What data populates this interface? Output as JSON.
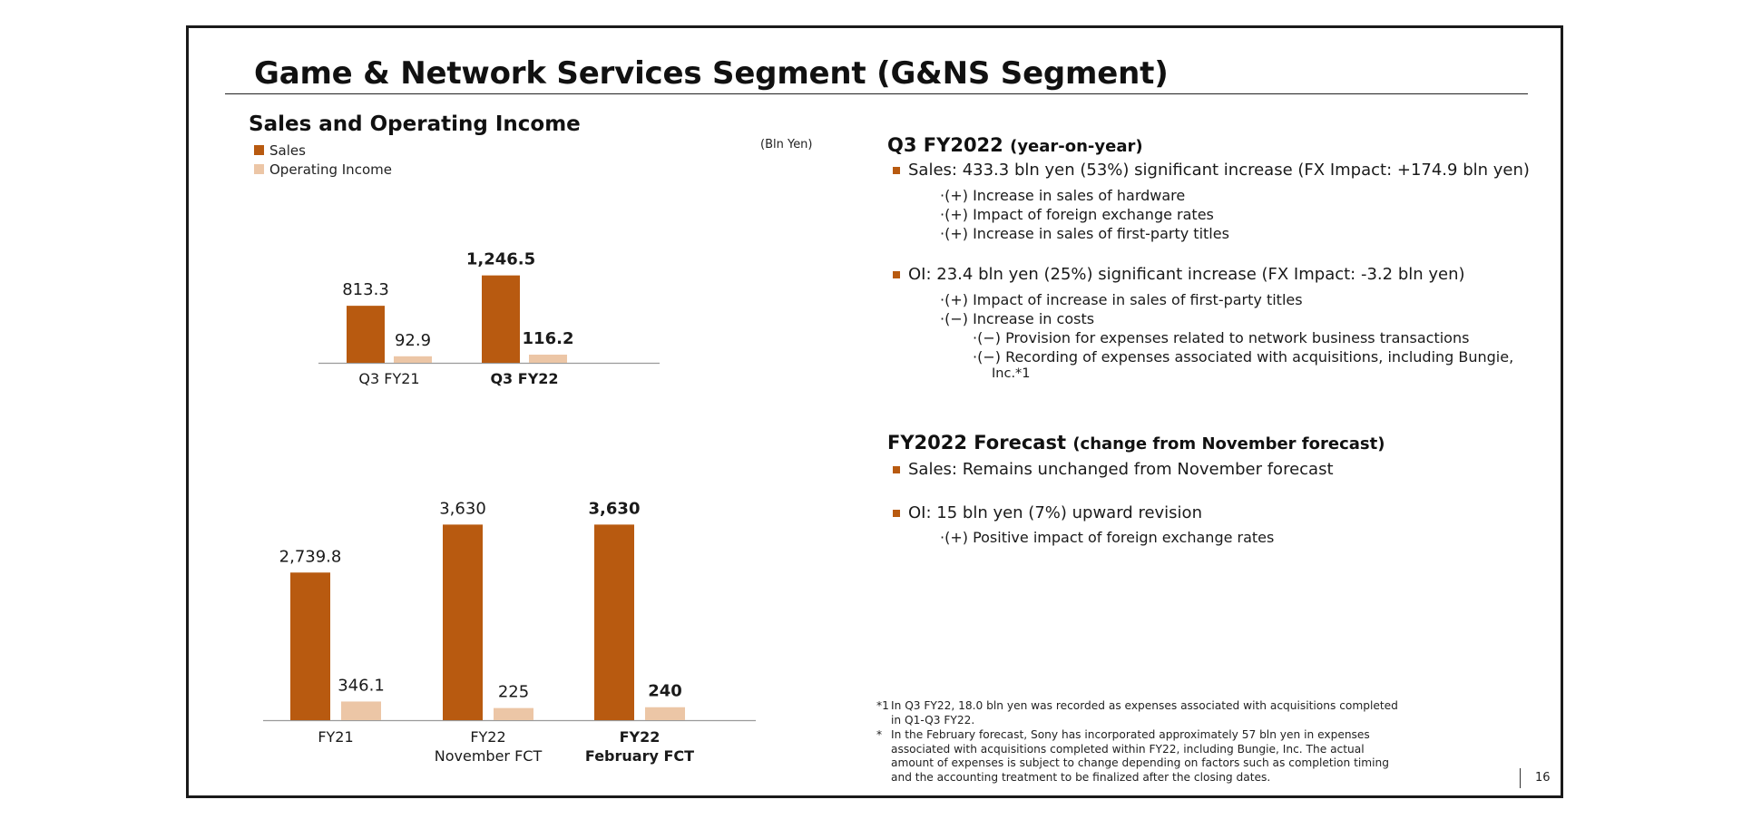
{
  "slide": {
    "title": "Game & Network Services Segment (G&NS Segment)",
    "page_number": "16"
  },
  "colors": {
    "sales": "#b85a10",
    "operating_income": "#ecc6a6",
    "bullet": "#b85a10"
  },
  "chart_data": [
    {
      "type": "bar",
      "title": "Sales and Operating Income",
      "unit": "(Bln Yen)",
      "legend": [
        "Sales",
        "Operating Income"
      ],
      "categories": [
        {
          "lines": [
            "Q3 FY21"
          ],
          "bold": false
        },
        {
          "lines": [
            "Q3 FY22"
          ],
          "bold": true
        }
      ],
      "series": [
        {
          "name": "Sales",
          "values": [
            813.3,
            1246.5
          ],
          "labels": [
            "813.3",
            "1,246.5"
          ]
        },
        {
          "name": "Operating Income",
          "values": [
            92.9,
            116.2
          ],
          "labels": [
            "92.9",
            "116.2"
          ]
        }
      ]
    },
    {
      "type": "bar",
      "categories": [
        {
          "lines": [
            "FY21"
          ],
          "bold": false
        },
        {
          "lines": [
            "FY22",
            "November FCT"
          ],
          "bold": false
        },
        {
          "lines": [
            "FY22",
            "February FCT"
          ],
          "bold": true
        }
      ],
      "series": [
        {
          "name": "Sales",
          "values": [
            2739.8,
            3630,
            3630
          ],
          "labels": [
            "2,739.8",
            "3,630",
            "3,630"
          ]
        },
        {
          "name": "Operating Income",
          "values": [
            346.1,
            225,
            240
          ],
          "labels": [
            "346.1",
            "225",
            "240"
          ]
        }
      ]
    }
  ],
  "q3": {
    "heading": "Q3 FY2022",
    "heading_sub": "(year-on-year)",
    "sales_bullet": "Sales: 433.3 bln yen (53%) significant increase (FX Impact: +174.9 bln yen)",
    "sales_items": [
      "·(+) Increase in sales of hardware",
      "·(+) Impact of foreign exchange rates",
      "·(+) Increase in sales of first-party titles"
    ],
    "oi_bullet": "OI:  23.4 bln yen (25%) significant increase (FX Impact: -3.2 bln yen)",
    "oi_items": [
      "·(+) Impact of increase in sales of first-party titles",
      "·(−) Increase in costs"
    ],
    "oi_subitems": [
      "·(−) Provision for expenses related to network business transactions",
      "·(−) Recording of expenses associated with acquisitions, including Bungie,",
      "Inc.*1"
    ]
  },
  "forecast": {
    "heading": "FY2022 Forecast",
    "heading_sub": "(change from November forecast)",
    "sales_bullet": "Sales: Remains unchanged from November forecast",
    "oi_bullet": "OI: 15 bln yen (7%) upward revision",
    "oi_items": [
      "·(+) Positive impact of foreign exchange rates"
    ]
  },
  "footnotes": [
    {
      "mark": "*1",
      "text": "In Q3 FY22, 18.0 bln yen was recorded as expenses associated with acquisitions completed in Q1-Q3 FY22."
    },
    {
      "mark": "*",
      "text": "In the February forecast, Sony has incorporated approximately 57 bln yen in expenses associated with acquisitions completed within FY22, including Bungie, Inc. The actual amount of expenses is subject to change depending on factors such as completion timing and the accounting treatment to be finalized after the closing dates."
    }
  ]
}
